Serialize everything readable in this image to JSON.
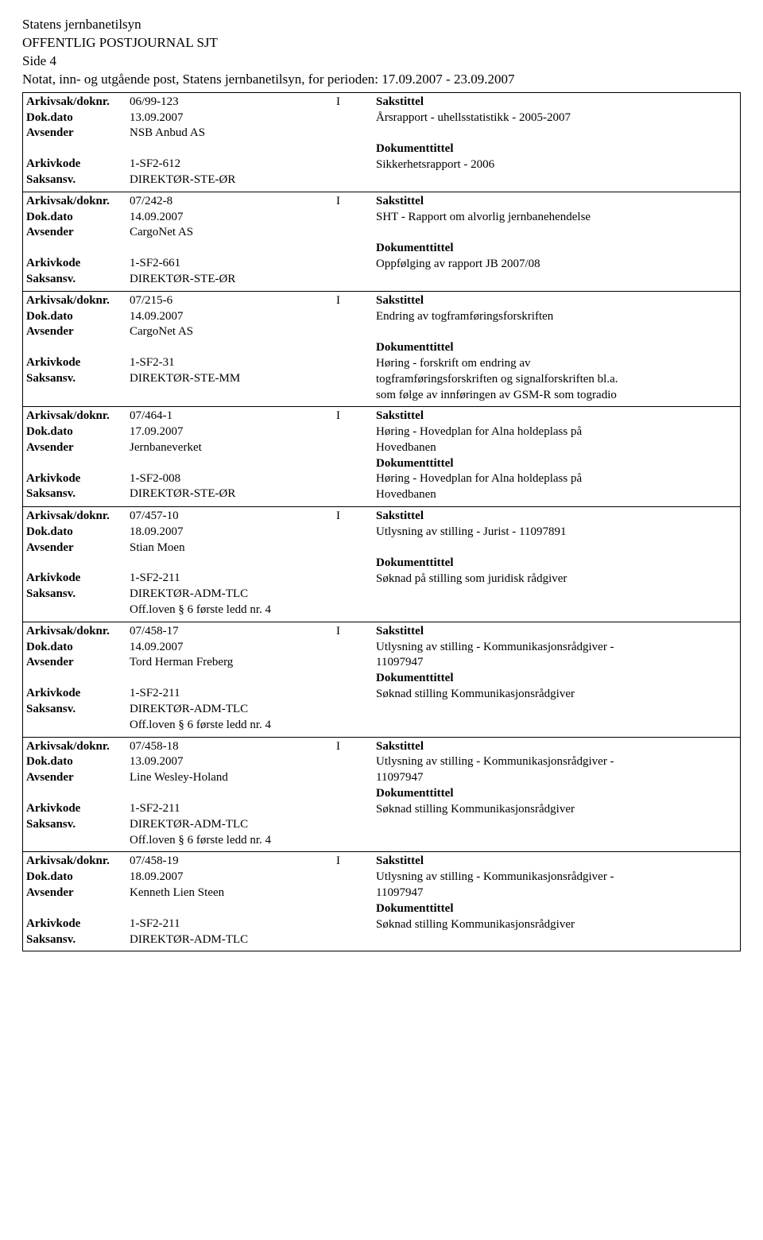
{
  "header": {
    "org": "Statens jernbanetilsyn",
    "title": "OFFENTLIG POSTJOURNAL SJT",
    "page": "Side 4",
    "sub": "Notat, inn- og utgående post, Statens jernbanetilsyn, for perioden: 17.09.2007 - 23.09.2007"
  },
  "labels": {
    "arkiv": "Arkivsak/doknr.",
    "dokdato": "Dok.dato",
    "avsender": "Avsender",
    "arkivkode": "Arkivkode",
    "saksansv": "Saksansv.",
    "sakstittel": "Sakstittel",
    "doktittel": "Dokumenttittel"
  },
  "entries": [
    {
      "doknr": "06/99-123",
      "type": "I",
      "dato": "13.09.2007",
      "avsender": "NSB Anbud AS",
      "arkivkode": "1-SF2-612",
      "saksansv": "DIREKTØR-STE-ØR",
      "sakstittel": [
        "Årsrapport - uhellsstatistikk - 2005-2007"
      ],
      "doktittel": [
        "Sikkerhetsrapport - 2006"
      ],
      "extra_mid": []
    },
    {
      "doknr": "07/242-8",
      "type": "I",
      "dato": "14.09.2007",
      "avsender": "CargoNet AS",
      "arkivkode": "1-SF2-661",
      "saksansv": "DIREKTØR-STE-ØR",
      "sakstittel": [
        "SHT - Rapport om alvorlig jernbanehendelse"
      ],
      "doktittel": [
        "Oppfølging av rapport JB 2007/08"
      ],
      "extra_mid": []
    },
    {
      "doknr": "07/215-6",
      "type": "I",
      "dato": "14.09.2007",
      "avsender": "CargoNet AS",
      "arkivkode": "1-SF2-31",
      "saksansv": "DIREKTØR-STE-MM",
      "sakstittel": [
        "Endring av togframføringsforskriften"
      ],
      "doktittel": [
        "Høring - forskrift om endring av",
        "togframføringsforskriften og signalforskriften bl.a.",
        "som følge av innføringen av GSM-R som togradio"
      ],
      "extra_mid": []
    },
    {
      "doknr": "07/464-1",
      "type": "I",
      "dato": "17.09.2007",
      "avsender": "Jernbaneverket",
      "arkivkode": "1-SF2-008",
      "saksansv": "DIREKTØR-STE-ØR",
      "sakstittel": [
        "Høring - Hovedplan for Alna holdeplass på",
        "Hovedbanen"
      ],
      "doktittel": [
        "Høring - Hovedplan for Alna holdeplass på",
        "Hovedbanen"
      ],
      "extra_mid": []
    },
    {
      "doknr": "07/457-10",
      "type": "I",
      "dato": "18.09.2007",
      "avsender": "Stian Moen",
      "arkivkode": "1-SF2-211",
      "saksansv": "DIREKTØR-ADM-TLC",
      "sakstittel": [
        "Utlysning av stilling - Jurist - 11097891"
      ],
      "doktittel": [
        "Søknad på stilling som juridisk rådgiver"
      ],
      "extra_mid": [
        "Off.loven § 6 første ledd nr. 4"
      ]
    },
    {
      "doknr": "07/458-17",
      "type": "I",
      "dato": "14.09.2007",
      "avsender": "Tord Herman Freberg",
      "arkivkode": "1-SF2-211",
      "saksansv": "DIREKTØR-ADM-TLC",
      "sakstittel": [
        "Utlysning av stilling - Kommunikasjonsrådgiver -",
        "11097947"
      ],
      "doktittel": [
        "Søknad stilling Kommunikasjonsrådgiver"
      ],
      "extra_mid": [
        "Off.loven § 6 første ledd nr. 4"
      ]
    },
    {
      "doknr": "07/458-18",
      "type": "I",
      "dato": "13.09.2007",
      "avsender": "Line Wesley-Holand",
      "arkivkode": "1-SF2-211",
      "saksansv": "DIREKTØR-ADM-TLC",
      "sakstittel": [
        "Utlysning av stilling - Kommunikasjonsrådgiver -",
        "11097947"
      ],
      "doktittel": [
        "Søknad stilling Kommunikasjonsrådgiver"
      ],
      "extra_mid": [
        "Off.loven § 6 første ledd nr. 4"
      ]
    },
    {
      "doknr": "07/458-19",
      "type": "I",
      "dato": "18.09.2007",
      "avsender": "Kenneth Lien Steen",
      "arkivkode": "1-SF2-211",
      "saksansv": "DIREKTØR-ADM-TLC",
      "sakstittel": [
        "Utlysning av stilling - Kommunikasjonsrådgiver -",
        "11097947"
      ],
      "doktittel": [
        "Søknad stilling Kommunikasjonsrådgiver"
      ],
      "extra_mid": []
    }
  ]
}
